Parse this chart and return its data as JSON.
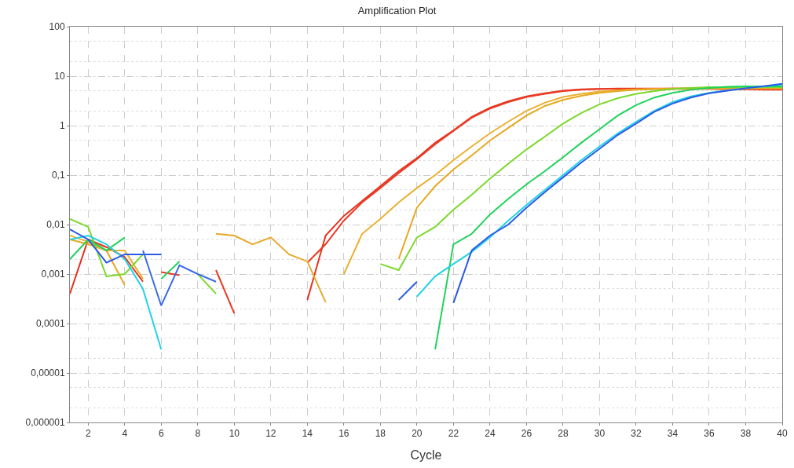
{
  "chart_data": {
    "type": "line",
    "title": "Amplification Plot",
    "xlabel": "Cycle",
    "log": "y",
    "grid": true,
    "marker": "none",
    "line_style": "solid",
    "x": [
      1,
      2,
      3,
      4,
      5,
      6,
      7,
      8,
      9,
      10,
      11,
      12,
      13,
      14,
      15,
      16,
      17,
      18,
      19,
      20,
      21,
      22,
      23,
      24,
      25,
      26,
      27,
      28,
      29,
      30,
      31,
      32,
      33,
      34,
      35,
      36,
      37,
      38,
      39,
      40
    ],
    "xlim": [
      1,
      40
    ],
    "xticks": [
      2,
      4,
      6,
      8,
      10,
      12,
      14,
      16,
      18,
      20,
      22,
      24,
      26,
      28,
      30,
      32,
      34,
      36,
      38,
      40
    ],
    "ylim": [
      1e-06,
      100
    ],
    "yticks": [
      {
        "value": 1e-06,
        "label": "0,000001"
      },
      {
        "value": 1e-05,
        "label": "0,00001"
      },
      {
        "value": 0.0001,
        "label": "0,0001"
      },
      {
        "value": 0.001,
        "label": "0,001"
      },
      {
        "value": 0.01,
        "label": "0,01"
      },
      {
        "value": 0.1,
        "label": "0,1"
      },
      1,
      10,
      100
    ],
    "series": [
      {
        "color": "#e8321e",
        "values": [
          0.0004,
          0.005,
          0.0035,
          0.0022,
          0.0007,
          null,
          null,
          null,
          null,
          null,
          null,
          null,
          null,
          0.0003,
          0.006,
          0.015,
          0.03,
          0.06,
          0.12,
          0.22,
          0.45,
          0.8,
          1.5,
          2.3,
          3.1,
          3.9,
          4.5,
          5.1,
          5.4,
          5.5,
          5.5,
          5.5,
          5.5,
          5.5,
          5.5,
          5.5,
          5.4,
          5.4,
          5.3,
          5.3
        ]
      },
      {
        "color": "#ea3a22",
        "values": [
          null,
          null,
          null,
          null,
          null,
          0.0011,
          0.00095,
          null,
          0.0012,
          0.00016,
          null,
          null,
          null,
          0.0017,
          0.004,
          0.012,
          0.028,
          0.055,
          0.11,
          0.21,
          0.42,
          0.78,
          1.45,
          2.2,
          3.0,
          3.8,
          4.4,
          5.0,
          5.3,
          5.5,
          5.6,
          5.6,
          5.6,
          5.6,
          5.6,
          5.6,
          5.6,
          5.5,
          5.5,
          5.5
        ]
      },
      {
        "color": "#e8a828",
        "values": [
          0.005,
          0.004,
          0.003,
          0.0006,
          null,
          null,
          null,
          null,
          0.0065,
          0.006,
          0.004,
          0.0055,
          0.0025,
          0.0018,
          0.00027,
          null,
          null,
          null,
          null,
          null,
          null,
          null,
          null,
          null,
          null,
          null,
          null,
          null,
          null,
          null,
          null,
          null,
          null,
          null,
          null,
          null,
          null,
          null,
          null,
          null
        ]
      },
      {
        "color": "#eab030",
        "values": [
          0.006,
          0.0045,
          0.003,
          0.003,
          0.0008,
          null,
          null,
          null,
          null,
          null,
          null,
          null,
          null,
          null,
          null,
          0.001,
          0.0065,
          0.013,
          0.028,
          0.055,
          0.1,
          0.2,
          0.38,
          0.7,
          1.2,
          2.0,
          2.9,
          3.8,
          4.4,
          4.9,
          5.2,
          5.4,
          5.5,
          5.6,
          5.6,
          5.6,
          5.6,
          5.6,
          5.6,
          5.6
        ]
      },
      {
        "color": "#e6a820",
        "values": [
          null,
          null,
          null,
          null,
          null,
          null,
          null,
          null,
          null,
          null,
          null,
          null,
          null,
          null,
          null,
          null,
          null,
          null,
          0.002,
          0.022,
          0.06,
          0.13,
          0.25,
          0.5,
          0.9,
          1.6,
          2.5,
          3.3,
          4.0,
          4.6,
          5.0,
          5.3,
          5.5,
          5.6,
          5.7,
          5.8,
          5.8,
          5.8,
          5.8,
          5.8
        ]
      },
      {
        "color": "#7ad82a",
        "values": [
          0.013,
          0.009,
          0.0009,
          0.001,
          0.0025,
          null,
          null,
          0.001,
          0.0004,
          null,
          null,
          null,
          null,
          null,
          null,
          null,
          null,
          0.0016,
          0.0012,
          0.0055,
          0.009,
          0.02,
          0.04,
          0.085,
          0.17,
          0.33,
          0.6,
          1.1,
          1.8,
          2.7,
          3.6,
          4.4,
          5.0,
          5.5,
          5.8,
          6.0,
          6.0,
          6.0,
          6.0,
          6.0
        ]
      },
      {
        "color": "#1ed25a",
        "values": [
          0.002,
          0.005,
          0.003,
          0.0055,
          null,
          0.0008,
          0.0018,
          null,
          null,
          null,
          null,
          null,
          null,
          null,
          null,
          null,
          null,
          null,
          null,
          null,
          3e-05,
          0.004,
          0.0065,
          0.016,
          0.033,
          0.065,
          0.12,
          0.23,
          0.45,
          0.85,
          1.6,
          2.6,
          3.7,
          4.6,
          5.3,
          5.8,
          6.1,
          6.2,
          6.2,
          6.2
        ]
      },
      {
        "color": "#22d2e6",
        "values": [
          0.005,
          0.006,
          0.004,
          0.002,
          0.0005,
          3e-05,
          null,
          null,
          null,
          null,
          null,
          null,
          null,
          null,
          null,
          null,
          null,
          null,
          null,
          0.00035,
          0.0009,
          0.0016,
          0.0028,
          0.0055,
          0.012,
          0.025,
          0.05,
          0.1,
          0.2,
          0.38,
          0.7,
          1.2,
          2.0,
          3.0,
          3.9,
          4.6,
          5.2,
          5.7,
          6.2,
          6.8
        ]
      },
      {
        "color": "#2a5ae6",
        "values": [
          0.008,
          0.005,
          0.0017,
          0.0025,
          0.0025,
          0.0025,
          null,
          null,
          null,
          null,
          null,
          null,
          null,
          null,
          null,
          null,
          null,
          null,
          0.0003,
          0.0007,
          null,
          0.00026,
          0.003,
          0.006,
          0.01,
          0.022,
          0.045,
          0.09,
          0.18,
          0.34,
          0.65,
          1.1,
          1.9,
          2.8,
          3.7,
          4.5,
          5.1,
          5.7,
          6.3,
          7.0
        ]
      },
      {
        "color": "#3a6ae8",
        "values": [
          null,
          null,
          null,
          null,
          0.003,
          0.00023,
          0.0015,
          0.001,
          0.0007,
          null,
          null,
          null,
          null,
          null,
          null,
          null,
          null,
          null,
          null,
          null,
          null,
          null,
          null,
          null,
          null,
          null,
          null,
          null,
          null,
          null,
          null,
          null,
          null,
          null,
          null,
          null,
          null,
          null,
          null,
          null
        ]
      }
    ]
  }
}
